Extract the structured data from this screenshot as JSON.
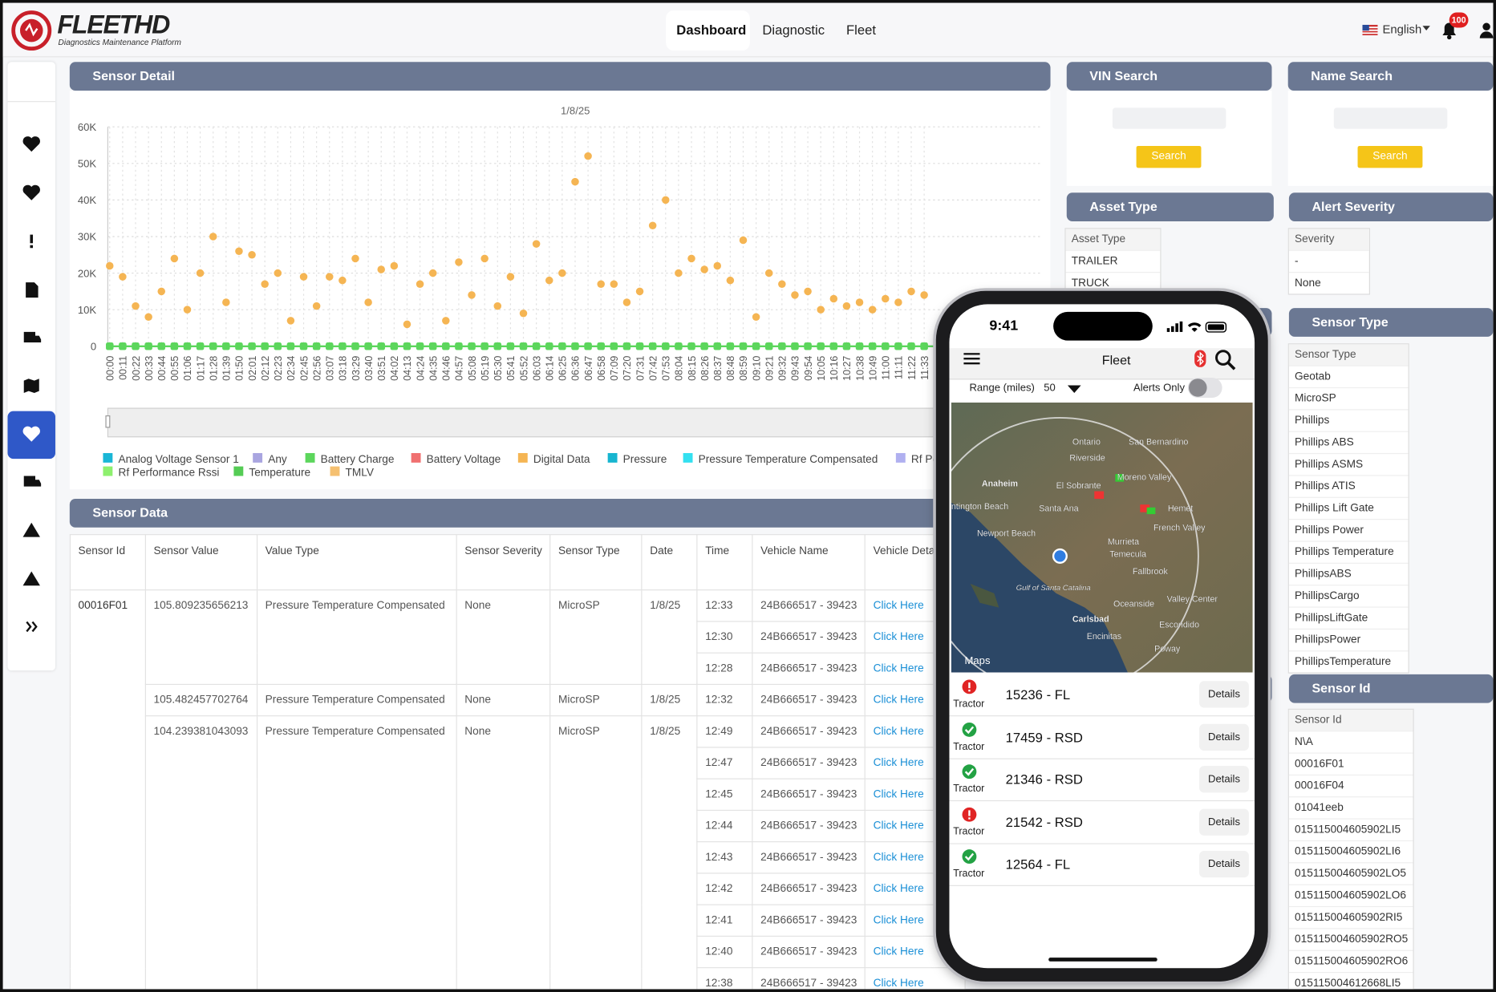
{
  "header": {
    "logo": "FLEETHD",
    "tagline": "Diagnostics Maintenance Platform",
    "nav": [
      "Dashboard",
      "Diagnostic",
      "Fleet"
    ],
    "language": "English",
    "notifications": "100"
  },
  "panels": {
    "sensor_detail": "Sensor Detail",
    "sensor_data": "Sensor Data"
  },
  "chart_data": {
    "type": "scatter",
    "title": "1/8/25",
    "categories": [
      "00:00",
      "00:11",
      "00:22",
      "00:33",
      "00:44",
      "00:55",
      "01:06",
      "01:17",
      "01:28",
      "01:39",
      "01:50",
      "02:01",
      "02:12",
      "02:23",
      "02:34",
      "02:45",
      "02:56",
      "03:07",
      "03:18",
      "03:29",
      "03:40",
      "03:51",
      "04:02",
      "04:13",
      "04:24",
      "04:35",
      "04:46",
      "04:57",
      "05:08",
      "05:19",
      "05:30",
      "05:41",
      "05:52",
      "06:03",
      "06:14",
      "06:25",
      "06:36",
      "06:47",
      "06:58",
      "07:09",
      "07:20",
      "07:31",
      "07:42",
      "07:53",
      "08:04",
      "08:15",
      "08:26",
      "08:37",
      "08:48",
      "08:59",
      "09:10",
      "09:21",
      "09:32",
      "09:43",
      "09:54",
      "10:05",
      "10:16",
      "10:27",
      "10:38",
      "10:49",
      "11:00",
      "11:11",
      "11:22",
      "11:33"
    ],
    "ylim": [
      0,
      60000
    ],
    "yticks": [
      0,
      {
        "value": 10000,
        "label": "10K"
      },
      {
        "value": 20000,
        "label": "20K"
      },
      {
        "value": 30000,
        "label": "30K"
      },
      {
        "value": 40000,
        "label": "40K"
      },
      {
        "value": 50000,
        "label": "50K"
      },
      {
        "value": 60000,
        "label": "60K"
      }
    ],
    "grid": true,
    "series": [
      {
        "name": "Analog Voltage Sensor 1",
        "color": "#1ab6d6"
      },
      {
        "name": "Any",
        "color": "#a9a5e0"
      },
      {
        "name": "Battery Charge",
        "color": "#5cd65c",
        "values": [
          0,
          0,
          0,
          0,
          0,
          0,
          0,
          0,
          0,
          0,
          0,
          0,
          0,
          0,
          0,
          0,
          0,
          0,
          0,
          0,
          0,
          0,
          0,
          0,
          0,
          0,
          0,
          0,
          0,
          0,
          0,
          0,
          0,
          0,
          0,
          0,
          0,
          0,
          0,
          0,
          0,
          0,
          0,
          0,
          0,
          0,
          0,
          0,
          0,
          0,
          0,
          0,
          0,
          0,
          0,
          0,
          0,
          0,
          0,
          0,
          0,
          0,
          0,
          0
        ]
      },
      {
        "name": "Battery Voltage",
        "color": "#f07070"
      },
      {
        "name": "Digital Data",
        "color": "#f5b553",
        "values": [
          22000,
          19000,
          11000,
          8000,
          15000,
          24000,
          10000,
          20000,
          30000,
          12000,
          26000,
          25000,
          17000,
          20000,
          7000,
          19000,
          11000,
          19000,
          18000,
          24000,
          12000,
          21000,
          22000,
          6000,
          17000,
          20000,
          7000,
          23000,
          14000,
          24000,
          11000,
          19000,
          9000,
          28000,
          18000,
          20000,
          45000,
          52000,
          17000,
          17000,
          12000,
          15000,
          33000,
          40000,
          20000,
          24000,
          21000,
          22000,
          18000,
          29000,
          8000,
          20000,
          17000,
          14000,
          15000,
          10000,
          13000,
          11000,
          12000,
          10000,
          13000,
          12000,
          15000,
          14000
        ]
      },
      {
        "name": "Pressure",
        "color": "#17b5d0"
      },
      {
        "name": "Pressure Temperature Compensated",
        "color": "#33e0f0"
      },
      {
        "name": "Rf Pe",
        "color": "#b0b0f0"
      },
      {
        "name": "Rf Performance Rssi",
        "color": "#8ef06e"
      },
      {
        "name": "Temperature",
        "color": "#55cc55"
      },
      {
        "name": "TMLV",
        "color": "#f5c070"
      }
    ]
  },
  "sensor_data": {
    "columns": [
      "Sensor Id",
      "Sensor Value",
      "Value Type",
      "Sensor Severity",
      "Sensor Type",
      "Date",
      "Time",
      "Vehicle Name",
      "Vehicle Detail"
    ],
    "sensor_id": "00016F01",
    "groups": [
      {
        "value": "105.809235656213",
        "value_type": "Pressure Temperature Compensated",
        "severity": "None",
        "sensor_type": "MicroSP",
        "date": "1/8/25",
        "readings": [
          {
            "time": "12:33",
            "vehicle": "24B666517 - 39423",
            "detail": "Click Here"
          },
          {
            "time": "12:30",
            "vehicle": "24B666517 - 39423",
            "detail": "Click Here"
          },
          {
            "time": "12:28",
            "vehicle": "24B666517 - 39423",
            "detail": "Click Here"
          }
        ]
      },
      {
        "value": "105.482457702764",
        "value_type": "Pressure Temperature Compensated",
        "severity": "None",
        "sensor_type": "MicroSP",
        "date": "1/8/25",
        "readings": [
          {
            "time": "12:32",
            "vehicle": "24B666517 - 39423",
            "detail": "Click Here"
          }
        ]
      },
      {
        "value": "104.239381043093",
        "value_type": "Pressure Temperature Compensated",
        "severity": "None",
        "sensor_type": "MicroSP",
        "date": "1/8/25",
        "readings": [
          {
            "time": "12:49",
            "vehicle": "24B666517 - 39423",
            "detail": "Click Here"
          },
          {
            "time": "12:47",
            "vehicle": "24B666517 - 39423",
            "detail": "Click Here"
          },
          {
            "time": "12:45",
            "vehicle": "24B666517 - 39423",
            "detail": "Click Here"
          },
          {
            "time": "12:44",
            "vehicle": "24B666517 - 39423",
            "detail": "Click Here"
          },
          {
            "time": "12:43",
            "vehicle": "24B666517 - 39423",
            "detail": "Click Here"
          },
          {
            "time": "12:42",
            "vehicle": "24B666517 - 39423",
            "detail": "Click Here"
          },
          {
            "time": "12:41",
            "vehicle": "24B666517 - 39423",
            "detail": "Click Here"
          },
          {
            "time": "12:40",
            "vehicle": "24B666517 - 39423",
            "detail": "Click Here"
          },
          {
            "time": "12:38",
            "vehicle": "24B666517 - 39423",
            "detail": "Click Here"
          }
        ]
      }
    ]
  },
  "vin_search": {
    "title": "VIN Search",
    "button": "Search"
  },
  "name_search": {
    "title": "Name Search",
    "button": "Search"
  },
  "asset_type": {
    "title": "Asset Type",
    "header": "Asset Type",
    "items": [
      "TRAILER",
      "TRUCK"
    ]
  },
  "alert_severity": {
    "title": "Alert Severity",
    "header": "Severity",
    "items": [
      "-",
      "None"
    ]
  },
  "sensor_type": {
    "title": "Sensor Type",
    "header": "Sensor Type",
    "items": [
      "Geotab",
      "MicroSP",
      "Phillips",
      "Phillips ABS",
      "Phillips ASMS",
      "Phillips ATIS",
      "Phillips Lift Gate",
      "Phillips Power",
      "Phillips Temperature",
      "PhillipsABS",
      "PhillipsCargo",
      "PhillipsLiftGate",
      "PhillipsPower",
      "PhillipsTemperature"
    ]
  },
  "sensor_id": {
    "title": "Sensor Id",
    "header": "Sensor Id",
    "items": [
      "N\\A",
      "00016F01",
      "00016F04",
      "01041eeb",
      "015115004605902LI5",
      "015115004605902LI6",
      "015115004605902LO5",
      "015115004605902LO6",
      "015115004605902RI5",
      "015115004605902RO5",
      "015115004605902RO6",
      "015115004612668LI5"
    ]
  },
  "phone": {
    "time": "9:41",
    "title": "Fleet",
    "range_label": "Range (miles)",
    "range_value": "50",
    "alerts_only": "Alerts Only",
    "maps_credit": "Maps",
    "map_labels": [
      "Ontario",
      "San Bernardino",
      "Riverside",
      "Anaheim",
      "Moreno Valley",
      "El Sobrante",
      "Santa Ana",
      "Hemet",
      "ntington Beach",
      "Newport Beach",
      "French Valley",
      "Murrieta",
      "Temecula",
      "Fallbrook",
      "Oceanside",
      "Valley Center",
      "Carlsbad",
      "Escondido",
      "Encinitas",
      "Poway",
      "Gulf of Santa Catalina"
    ],
    "vehicles": [
      {
        "status": "alert",
        "type": "Tractor",
        "name": "15236 - FL",
        "action": "Details"
      },
      {
        "status": "ok",
        "type": "Tractor",
        "name": "17459 - RSD",
        "action": "Details"
      },
      {
        "status": "ok",
        "type": "Tractor",
        "name": "21346 - RSD",
        "action": "Details"
      },
      {
        "status": "alert",
        "type": "Tractor",
        "name": "21542 - RSD",
        "action": "Details"
      },
      {
        "status": "ok",
        "type": "Tractor",
        "name": "12564 - FL",
        "action": "Details"
      }
    ]
  }
}
